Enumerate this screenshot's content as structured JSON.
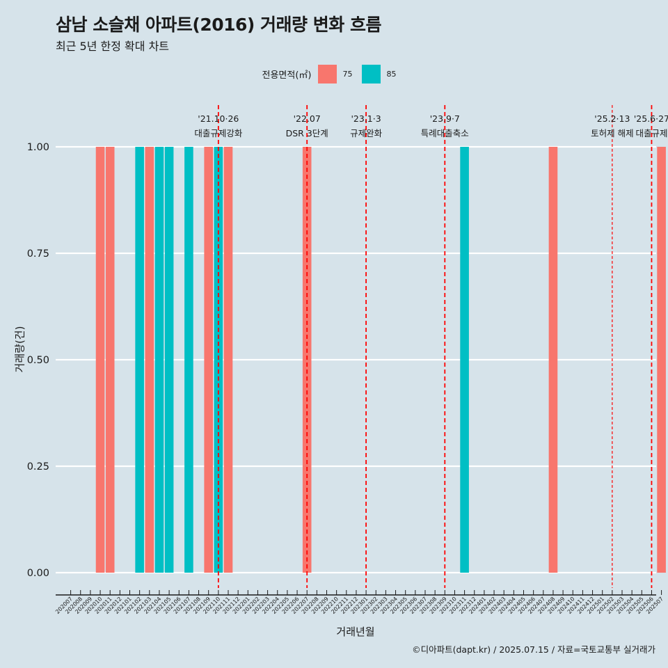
{
  "chart_data": {
    "type": "bar",
    "title": "삼남 소슬채 아파트(2016) 거래량 변화 흐름",
    "subtitle": "최근 5년 한정 확대 차트",
    "xlabel": "거래년월",
    "ylabel": "거래량(건)",
    "caption": "©디아파트(dapt.kr) / 2025.07.15 / 자료=국토교통부 실거래가",
    "legend": {
      "title": "전용면적(㎡)",
      "position": "top",
      "entries": [
        {
          "name": "75",
          "color": "#f8766d"
        },
        {
          "name": "85",
          "color": "#00bfc4"
        }
      ]
    },
    "ylim": [
      0,
      1
    ],
    "yticks": [
      "0.00",
      "0.25",
      "0.50",
      "0.75",
      "1.00"
    ],
    "categories": [
      "202007",
      "202008",
      "202009",
      "202010",
      "202011",
      "202012",
      "202101",
      "202102",
      "202103",
      "202104",
      "202105",
      "202106",
      "202107",
      "202108",
      "202109",
      "202110",
      "202111",
      "202112",
      "202201",
      "202202",
      "202203",
      "202204",
      "202205",
      "202206",
      "202207",
      "202208",
      "202209",
      "202210",
      "202211",
      "202212",
      "202301",
      "202302",
      "202303",
      "202304",
      "202305",
      "202306",
      "202307",
      "202308",
      "202309",
      "202310",
      "202311",
      "202312",
      "202401",
      "202402",
      "202403",
      "202404",
      "202405",
      "202406",
      "202407",
      "202408",
      "202409",
      "202410",
      "202411",
      "202412",
      "202501",
      "202502",
      "202503",
      "202504",
      "202505",
      "202506",
      "202507"
    ],
    "series": [
      {
        "name": "75",
        "color": "#f8766d",
        "values": [
          0,
          0,
          0,
          1,
          1,
          0,
          0,
          0,
          1,
          0,
          0,
          0,
          0,
          0,
          1,
          0,
          1,
          0,
          0,
          0,
          0,
          0,
          0,
          0,
          1,
          0,
          0,
          0,
          0,
          0,
          0,
          0,
          0,
          0,
          0,
          0,
          0,
          0,
          0,
          0,
          0,
          0,
          0,
          0,
          0,
          0,
          0,
          0,
          0,
          1,
          0,
          0,
          0,
          0,
          0,
          0,
          0,
          0,
          0,
          0,
          1
        ]
      },
      {
        "name": "85",
        "color": "#00bfc4",
        "values": [
          0,
          0,
          0,
          0,
          0,
          0,
          0,
          1,
          0,
          1,
          1,
          0,
          1,
          0,
          0,
          1,
          0,
          0,
          0,
          0,
          0,
          0,
          0,
          0,
          0,
          0,
          0,
          0,
          0,
          0,
          0,
          0,
          0,
          0,
          0,
          0,
          0,
          0,
          0,
          0,
          1,
          0,
          0,
          0,
          0,
          0,
          0,
          0,
          0,
          0,
          0,
          0,
          0,
          0,
          0,
          0,
          0,
          0,
          0,
          0,
          0
        ]
      }
    ],
    "annotations": [
      {
        "x": "202110",
        "line1": "'21.10·26",
        "line2": "대출규제강화",
        "style": "dashed"
      },
      {
        "x": "202207",
        "line1": "'22.07",
        "line2": "DSR 3단계",
        "style": "dashed"
      },
      {
        "x": "202301",
        "line1": "'23.1·3",
        "line2": "규제완화",
        "style": "dashed"
      },
      {
        "x": "202309",
        "line1": "'23.9·7",
        "line2": "특례대출축소",
        "style": "dashed"
      },
      {
        "x": "202502",
        "line1": "'25.2·13",
        "line2": "토허제 해제",
        "style": "dotted"
      },
      {
        "x": "202506",
        "line1": "'25.6·27",
        "line2": "대출규제",
        "style": "dashed"
      }
    ],
    "grid": true
  }
}
